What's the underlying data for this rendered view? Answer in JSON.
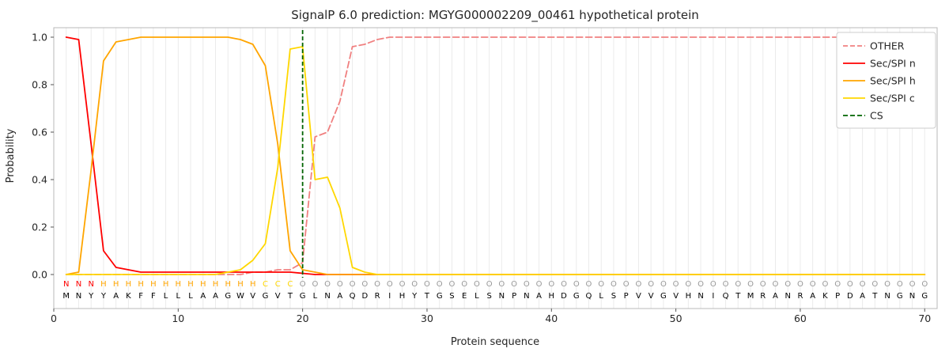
{
  "title": "SignalP 6.0 prediction: MGYG000002209_00461 hypothetical protein",
  "xlabel": "Protein sequence",
  "ylabel": "Probability",
  "axis": {
    "xticks": [
      0,
      10,
      20,
      30,
      40,
      50,
      60,
      70
    ],
    "yticks": [
      0,
      0.2,
      0.4,
      0.6,
      0.8,
      1.0
    ],
    "xlim": [
      0,
      71
    ],
    "ylim": [
      -0.15,
      1.04
    ],
    "grid": "vertical-per-residue"
  },
  "colors": {
    "other": "#f08080",
    "n": "#ff0000",
    "h": "#ffa500",
    "c": "#ffd700",
    "cs": "#006400",
    "grid": "#ebebeb",
    "spine": "#b8b8b8",
    "tick": "#555555",
    "o_letter": "#999999"
  },
  "legend": [
    {
      "label": "OTHER",
      "color": "#f08080",
      "dash": true
    },
    {
      "label": "Sec/SPI n",
      "color": "#ff0000",
      "dash": false
    },
    {
      "label": "Sec/SPI h",
      "color": "#ffa500",
      "dash": false
    },
    {
      "label": "Sec/SPI c",
      "color": "#ffd700",
      "dash": false
    },
    {
      "label": "CS",
      "color": "#006400",
      "dash": true
    }
  ],
  "chart_data": {
    "type": "line",
    "x": [
      1,
      2,
      3,
      4,
      5,
      6,
      7,
      8,
      9,
      10,
      11,
      12,
      13,
      14,
      15,
      16,
      17,
      18,
      19,
      20,
      21,
      22,
      23,
      24,
      25,
      26,
      27,
      28,
      29,
      30,
      31,
      32,
      33,
      34,
      35,
      36,
      37,
      38,
      39,
      40,
      41,
      42,
      43,
      44,
      45,
      46,
      47,
      48,
      49,
      50,
      51,
      52,
      53,
      54,
      55,
      56,
      57,
      58,
      59,
      60,
      61,
      62,
      63,
      64,
      65,
      66,
      67,
      68,
      69,
      70
    ],
    "series": [
      {
        "name": "OTHER",
        "color": "#f08080",
        "dash": true,
        "values": [
          0,
          0,
          0,
          0,
          0,
          0,
          0,
          0,
          0,
          0,
          0,
          0,
          0,
          0,
          0,
          0.01,
          0.01,
          0.02,
          0.02,
          0.05,
          0.58,
          0.6,
          0.73,
          0.96,
          0.97,
          0.99,
          1,
          1,
          1,
          1,
          1,
          1,
          1,
          1,
          1,
          1,
          1,
          1,
          1,
          1,
          1,
          1,
          1,
          1,
          1,
          1,
          1,
          1,
          1,
          1,
          1,
          1,
          1,
          1,
          1,
          1,
          1,
          1,
          1,
          1,
          1,
          1,
          1,
          1,
          1,
          1,
          1,
          1,
          1,
          1
        ]
      },
      {
        "name": "Sec/SPI n",
        "color": "#ff0000",
        "dash": false,
        "values": [
          1,
          0.99,
          0.55,
          0.1,
          0.03,
          0.02,
          0.01,
          0.01,
          0.01,
          0.01,
          0.01,
          0.01,
          0.01,
          0.01,
          0.01,
          0.01,
          0.01,
          0.01,
          0.01,
          0.005,
          0,
          0,
          0,
          0,
          0,
          0,
          0,
          0,
          0,
          0,
          0,
          0,
          0,
          0,
          0,
          0,
          0,
          0,
          0,
          0,
          0,
          0,
          0,
          0,
          0,
          0,
          0,
          0,
          0,
          0,
          0,
          0,
          0,
          0,
          0,
          0,
          0,
          0,
          0,
          0,
          0,
          0,
          0,
          0,
          0,
          0,
          0,
          0,
          0,
          0
        ]
      },
      {
        "name": "Sec/SPI h",
        "color": "#ffa500",
        "dash": false,
        "values": [
          0,
          0.01,
          0.44,
          0.9,
          0.98,
          0.99,
          1,
          1,
          1,
          1,
          1,
          1,
          1,
          1,
          0.99,
          0.97,
          0.88,
          0.55,
          0.1,
          0.02,
          0.01,
          0,
          0,
          0,
          0,
          0,
          0,
          0,
          0,
          0,
          0,
          0,
          0,
          0,
          0,
          0,
          0,
          0,
          0,
          0,
          0,
          0,
          0,
          0,
          0,
          0,
          0,
          0,
          0,
          0,
          0,
          0,
          0,
          0,
          0,
          0,
          0,
          0,
          0,
          0,
          0,
          0,
          0,
          0,
          0,
          0,
          0,
          0,
          0,
          0
        ]
      },
      {
        "name": "Sec/SPI c",
        "color": "#ffd700",
        "dash": false,
        "values": [
          0,
          0,
          0,
          0,
          0,
          0,
          0,
          0,
          0,
          0,
          0,
          0,
          0,
          0.01,
          0.02,
          0.06,
          0.13,
          0.45,
          0.95,
          0.96,
          0.4,
          0.41,
          0.28,
          0.03,
          0.01,
          0,
          0,
          0,
          0,
          0,
          0,
          0,
          0,
          0,
          0,
          0,
          0,
          0,
          0,
          0,
          0,
          0,
          0,
          0,
          0,
          0,
          0,
          0,
          0,
          0,
          0,
          0,
          0,
          0,
          0,
          0,
          0,
          0,
          0,
          0,
          0,
          0,
          0,
          0,
          0,
          0,
          0,
          0,
          0,
          0
        ]
      }
    ],
    "cs_position": 20,
    "sequence": "MNYYAKFFLLLAAGWVGVTGLNAQDRIHYTGSELSNPNAHDGQLSPVVGVHNIQTMRANRAKPDATNGNG",
    "regions": [
      {
        "letter": "N",
        "color": "#ff0000",
        "from": 1,
        "to": 3
      },
      {
        "letter": "H",
        "color": "#ffa500",
        "from": 4,
        "to": 16
      },
      {
        "letter": "C",
        "color": "#ffd700",
        "from": 17,
        "to": 19
      },
      {
        "letter": "O",
        "color": "#999999",
        "from": 20,
        "to": 70
      }
    ]
  }
}
